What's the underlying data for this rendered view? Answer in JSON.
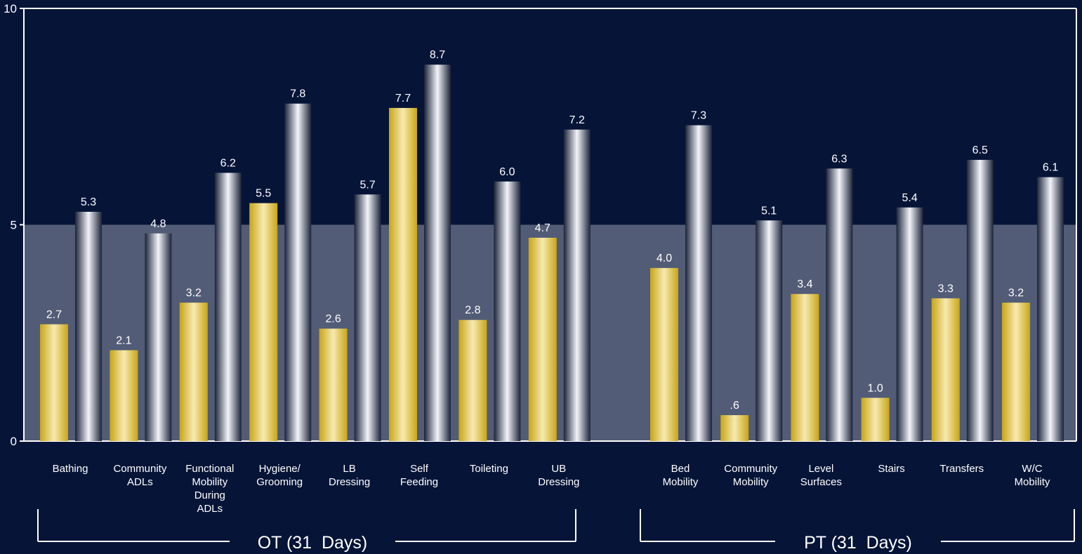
{
  "chart_data": {
    "type": "bar",
    "ylim": [
      0,
      10
    ],
    "yticks": [
      "0",
      "5",
      "10"
    ],
    "band": [
      0,
      5
    ],
    "colors": {
      "background": "#061437",
      "band": "#525c76",
      "gold": "#d8b72c",
      "silver": "#e8e8f0",
      "axis": "#ffffff"
    },
    "groups": [
      {
        "label": "OT (31  Days)",
        "categories": [
          {
            "label": [
              "Bathing"
            ],
            "gold": 2.7,
            "gold_label": "2.7",
            "silver": 5.3,
            "silver_label": "5.3"
          },
          {
            "label": [
              "Community",
              "ADLs"
            ],
            "gold": 2.1,
            "gold_label": "2.1",
            "silver": 4.8,
            "silver_label": "4.8"
          },
          {
            "label": [
              "Functional",
              "Mobility",
              "During",
              "ADLs"
            ],
            "gold": 3.2,
            "gold_label": "3.2",
            "silver": 6.2,
            "silver_label": "6.2"
          },
          {
            "label": [
              "Hygiene/",
              "Grooming"
            ],
            "gold": 5.5,
            "gold_label": "5.5",
            "silver": 7.8,
            "silver_label": "7.8"
          },
          {
            "label": [
              "LB",
              "Dressing"
            ],
            "gold": 2.6,
            "gold_label": "2.6",
            "silver": 5.7,
            "silver_label": "5.7"
          },
          {
            "label": [
              "Self",
              "Feeding"
            ],
            "gold": 7.7,
            "gold_label": "7.7",
            "silver": 8.7,
            "silver_label": "8.7"
          },
          {
            "label": [
              "Toileting"
            ],
            "gold": 2.8,
            "gold_label": "2.8",
            "silver": 6.0,
            "silver_label": "6.0"
          },
          {
            "label": [
              "UB",
              "Dressing"
            ],
            "gold": 4.7,
            "gold_label": "4.7",
            "silver": 7.2,
            "silver_label": "7.2"
          }
        ]
      },
      {
        "label": "PT (31  Days)",
        "categories": [
          {
            "label": [
              "Bed",
              "Mobility"
            ],
            "gold": 4.0,
            "gold_label": "4.0",
            "silver": 7.3,
            "silver_label": "7.3"
          },
          {
            "label": [
              "Community",
              "Mobility"
            ],
            "gold": 0.6,
            "gold_label": ".6",
            "silver": 5.1,
            "silver_label": "5.1"
          },
          {
            "label": [
              "Level",
              "Surfaces"
            ],
            "gold": 3.4,
            "gold_label": "3.4",
            "silver": 6.3,
            "silver_label": "6.3"
          },
          {
            "label": [
              "Stairs"
            ],
            "gold": 1.0,
            "gold_label": "1.0",
            "silver": 5.4,
            "silver_label": "5.4"
          },
          {
            "label": [
              "Transfers"
            ],
            "gold": 3.3,
            "gold_label": "3.3",
            "silver": 6.5,
            "silver_label": "6.5"
          },
          {
            "label": [
              "W/C",
              "Mobility"
            ],
            "gold": 3.2,
            "gold_label": "3.2",
            "silver": 6.1,
            "silver_label": "6.1"
          }
        ]
      }
    ]
  }
}
